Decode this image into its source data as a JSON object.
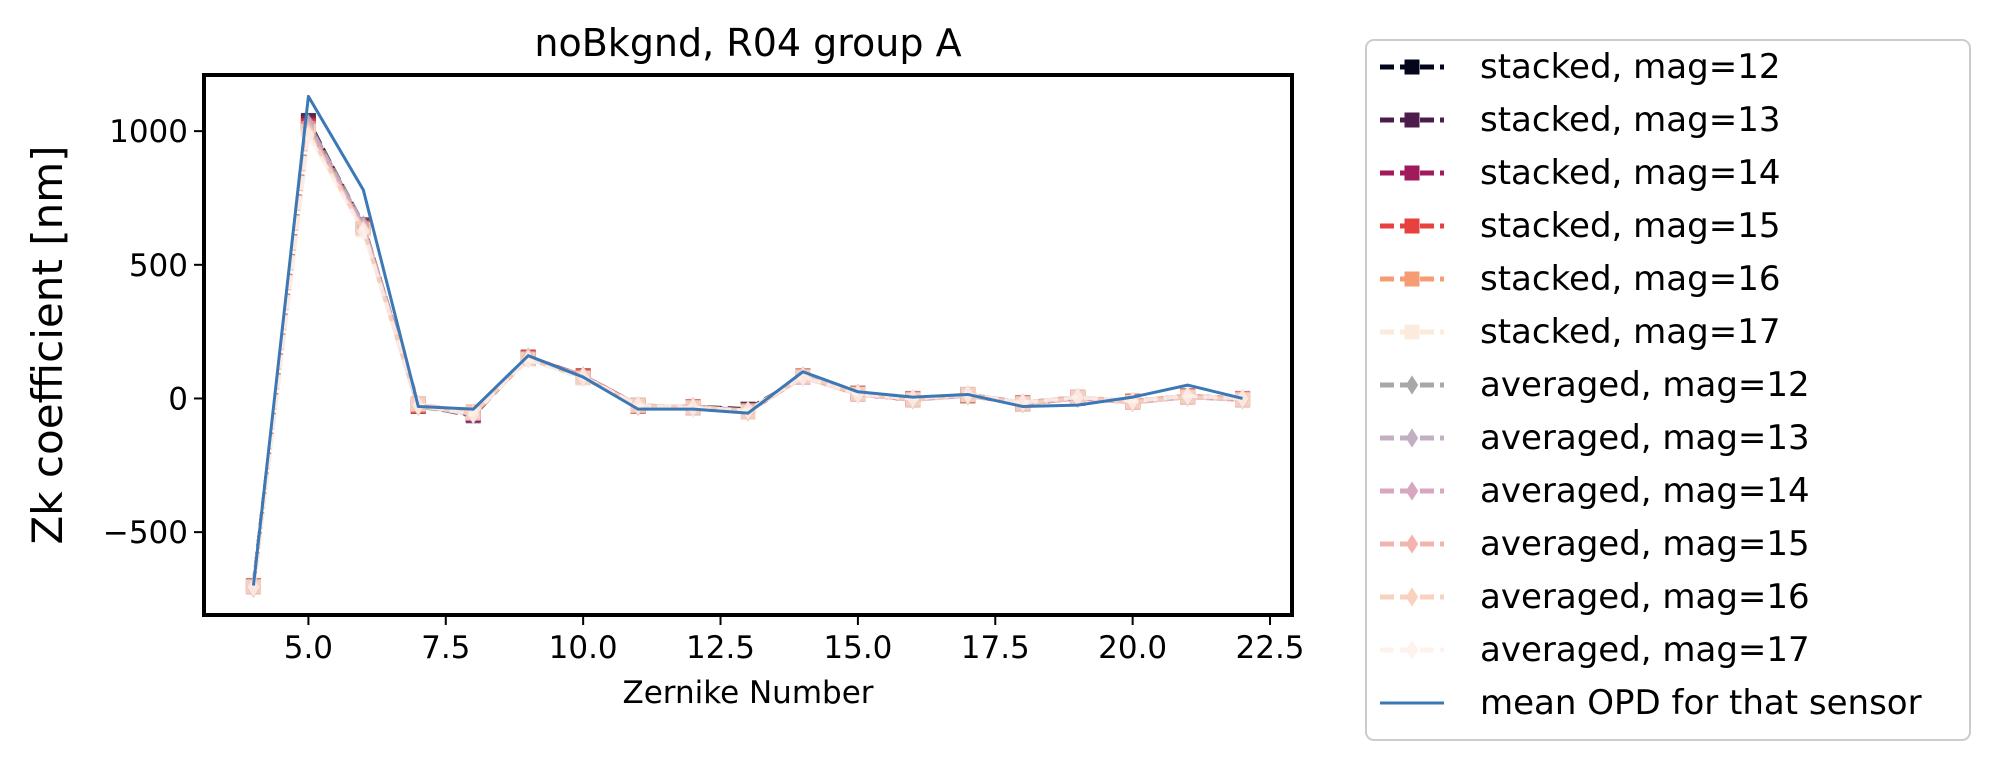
{
  "chart_data": {
    "type": "line",
    "title": "noBkgnd, R04 group A",
    "xlabel": "Zernike Number",
    "ylabel": "Zk coefficient [nm]",
    "xlim": [
      3.1,
      22.9
    ],
    "ylim": [
      -810,
      1210
    ],
    "xticks": [
      5.0,
      7.5,
      10.0,
      12.5,
      15.0,
      17.5,
      20.0,
      22.5
    ],
    "xtick_labels": [
      "5.0",
      "7.5",
      "10.0",
      "12.5",
      "15.0",
      "17.5",
      "20.0",
      "22.5"
    ],
    "yticks": [
      -500,
      0,
      500,
      1000
    ],
    "ytick_labels": [
      "−500",
      "0",
      "500",
      "1000"
    ],
    "grid": false,
    "legend_position": "outside-right",
    "x": [
      4,
      5,
      6,
      7,
      8,
      9,
      10,
      11,
      12,
      13,
      14,
      15,
      16,
      17,
      18,
      19,
      20,
      21,
      22
    ],
    "series": [
      {
        "name": "stacked, mag=12",
        "color": "#03051a",
        "marker": "square",
        "style": "dashed",
        "values": [
          -700,
          1040,
          640,
          -30,
          -60,
          150,
          80,
          -30,
          -30,
          -40,
          80,
          20,
          0,
          10,
          -20,
          0,
          -10,
          10,
          0
        ]
      },
      {
        "name": "stacked, mag=13",
        "color": "#4c1d4b",
        "marker": "square",
        "style": "dashed",
        "values": [
          -705,
          1035,
          650,
          -25,
          -65,
          155,
          85,
          -25,
          -35,
          -45,
          85,
          15,
          -5,
          15,
          -15,
          5,
          -15,
          5,
          -5
        ]
      },
      {
        "name": "stacked, mag=14",
        "color": "#a11a5b",
        "marker": "square",
        "style": "dashed",
        "values": [
          -700,
          1030,
          645,
          -20,
          -60,
          150,
          80,
          -30,
          -30,
          -45,
          80,
          20,
          0,
          10,
          -20,
          0,
          -10,
          10,
          0
        ]
      },
      {
        "name": "stacked, mag=15",
        "color": "#e83f3f",
        "marker": "square",
        "style": "dashed",
        "values": [
          -705,
          1020,
          640,
          -30,
          -55,
          155,
          85,
          -25,
          -35,
          -50,
          80,
          15,
          -5,
          15,
          -20,
          5,
          -15,
          5,
          -5
        ]
      },
      {
        "name": "stacked, mag=16",
        "color": "#f69c73",
        "marker": "square",
        "style": "dashed",
        "values": [
          -700,
          1010,
          635,
          -25,
          -50,
          150,
          80,
          -30,
          -30,
          -45,
          85,
          20,
          0,
          10,
          -15,
          0,
          -10,
          10,
          0
        ]
      },
      {
        "name": "stacked, mag=17",
        "color": "#faebdd",
        "marker": "square",
        "style": "dashed",
        "values": [
          -705,
          1000,
          630,
          -20,
          -55,
          145,
          75,
          -25,
          -35,
          -50,
          80,
          15,
          -5,
          15,
          -20,
          5,
          -15,
          5,
          -5
        ]
      },
      {
        "name": "averaged, mag=12",
        "color": "#a8a8ab",
        "marker": "diamond",
        "style": "dashed",
        "values": [
          -710,
          1030,
          650,
          -30,
          -60,
          150,
          85,
          -30,
          -30,
          -50,
          85,
          20,
          -5,
          10,
          -20,
          0,
          -15,
          5,
          -5
        ]
      },
      {
        "name": "averaged, mag=13",
        "color": "#c2afc1",
        "marker": "diamond",
        "style": "dashed",
        "values": [
          -705,
          1025,
          645,
          -25,
          -60,
          155,
          80,
          -25,
          -35,
          -45,
          80,
          15,
          0,
          15,
          -15,
          5,
          -10,
          10,
          0
        ]
      },
      {
        "name": "averaged, mag=14",
        "color": "#d9a6c0",
        "marker": "diamond",
        "style": "dashed",
        "values": [
          -710,
          1015,
          640,
          -30,
          -55,
          150,
          85,
          -30,
          -30,
          -50,
          85,
          20,
          -5,
          10,
          -20,
          0,
          -15,
          5,
          -5
        ]
      },
      {
        "name": "averaged, mag=15",
        "color": "#f2b5ad",
        "marker": "diamond",
        "style": "dashed",
        "values": [
          -705,
          1005,
          635,
          -25,
          -60,
          155,
          80,
          -25,
          -35,
          -45,
          80,
          15,
          0,
          15,
          -15,
          5,
          -10,
          10,
          0
        ]
      },
      {
        "name": "averaged, mag=16",
        "color": "#f9d2bf",
        "marker": "diamond",
        "style": "dashed",
        "values": [
          -710,
          995,
          630,
          -30,
          -55,
          150,
          85,
          -30,
          -30,
          -50,
          85,
          20,
          -5,
          10,
          -20,
          0,
          -15,
          5,
          -5
        ]
      },
      {
        "name": "averaged, mag=17",
        "color": "#fdf2ec",
        "marker": "diamond",
        "style": "dashed",
        "values": [
          -705,
          985,
          625,
          -25,
          -60,
          145,
          80,
          -25,
          -35,
          -45,
          80,
          15,
          0,
          15,
          -15,
          5,
          -10,
          10,
          0
        ]
      },
      {
        "name": "mean OPD for that sensor",
        "color": "#3b78b5",
        "marker": "none",
        "style": "solid",
        "values": [
          -700,
          1130,
          780,
          -30,
          -40,
          160,
          80,
          -40,
          -40,
          -55,
          100,
          25,
          5,
          15,
          -30,
          -25,
          5,
          50,
          0
        ]
      }
    ]
  }
}
